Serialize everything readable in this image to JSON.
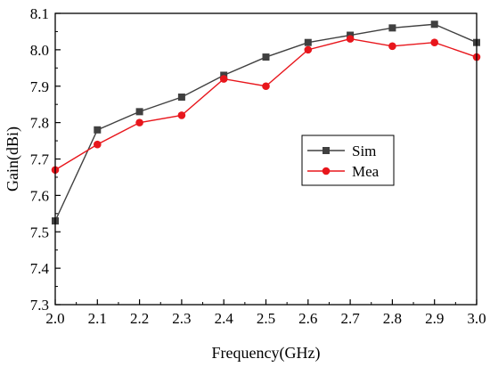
{
  "chart_data": {
    "type": "line",
    "title": "",
    "xlabel": "Frequency(GHz)",
    "ylabel": "Gain(dBi)",
    "xlim": [
      2.0,
      3.0
    ],
    "ylim": [
      7.3,
      8.1
    ],
    "xticks": [
      "2.0",
      "2.1",
      "2.2",
      "2.3",
      "2.4",
      "2.5",
      "2.6",
      "2.7",
      "2.8",
      "2.9",
      "3.0"
    ],
    "yticks": [
      "7.3",
      "7.4",
      "7.5",
      "7.6",
      "7.7",
      "7.8",
      "7.9",
      "8.0",
      "8.1"
    ],
    "x": [
      2.0,
      2.1,
      2.2,
      2.3,
      2.4,
      2.5,
      2.6,
      2.7,
      2.8,
      2.9,
      3.0
    ],
    "series": [
      {
        "name": "Sim",
        "color": "#404040",
        "marker": "square",
        "values": [
          7.53,
          7.78,
          7.83,
          7.87,
          7.93,
          7.98,
          8.02,
          8.04,
          8.06,
          8.07,
          8.02
        ]
      },
      {
        "name": "Mea",
        "color": "#e8161c",
        "marker": "circle",
        "values": [
          7.67,
          7.74,
          7.8,
          7.82,
          7.92,
          7.9,
          8.0,
          8.03,
          8.01,
          8.02,
          7.98
        ]
      }
    ],
    "grid": false,
    "legend": "center-right"
  }
}
